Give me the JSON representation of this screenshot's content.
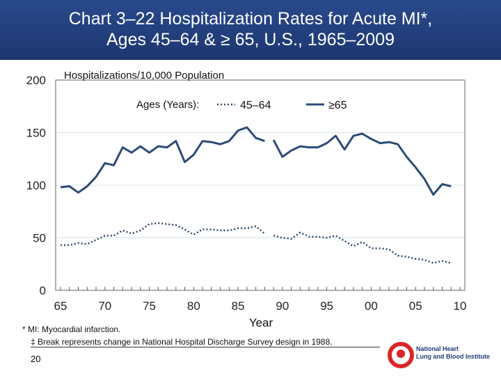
{
  "title": {
    "line1": "Chart 3–22 Hospitalization Rates for Acute MI*,",
    "line2": "Ages 45–64 & ≥ 65, U.S., 1965–2009"
  },
  "footnotes": [
    "* MI: Myocardial infarction.",
    "‡ Break represents change in National Hospital Discharge Survey design in 1988."
  ],
  "slide_number": "20",
  "logo_text": "National Heart Lung and Blood Institute",
  "chart_data": {
    "type": "line",
    "ylabel": "Hospitalizations/10,000 Population",
    "xlabel": "Year",
    "ylim": [
      0,
      200
    ],
    "yticks": [
      "0",
      "50",
      "100",
      "150",
      "200"
    ],
    "xlim": [
      1965,
      2010
    ],
    "xtick_labels": [
      "65",
      "70",
      "75",
      "80",
      "85",
      "90",
      "95",
      "00",
      "05",
      "10"
    ],
    "grid": true,
    "legend": {
      "title": "Ages (Years):",
      "placement": "top-center"
    },
    "break_year": 1988,
    "series": [
      {
        "name": "45–64",
        "style": "dotted",
        "color": "#2b4566",
        "segments": [
          {
            "x": [
              1965,
              1966,
              1967,
              1968,
              1969,
              1970,
              1971,
              1972,
              1973,
              1974,
              1975,
              1976,
              1977,
              1978,
              1979,
              1980,
              1981,
              1982,
              1983,
              1984,
              1985,
              1986,
              1987,
              1988
            ],
            "y": [
              43,
              43,
              45,
              44,
              48,
              52,
              52,
              57,
              54,
              57,
              63,
              64,
              63,
              62,
              58,
              53,
              58,
              58,
              57,
              57,
              59,
              59,
              61,
              54
            ]
          },
          {
            "x": [
              1989,
              1990,
              1991,
              1992,
              1993,
              1994,
              1995,
              1996,
              1997,
              1998,
              1999,
              2000,
              2001,
              2002,
              2003,
              2004,
              2005,
              2006,
              2007,
              2008,
              2009
            ],
            "y": [
              52,
              50,
              49,
              55,
              51,
              51,
              50,
              52,
              47,
              42,
              46,
              40,
              40,
              39,
              33,
              32,
              30,
              29,
              26,
              28,
              26
            ]
          }
        ]
      },
      {
        "name": "≥65",
        "style": "solid",
        "color": "#2b4a78",
        "segments": [
          {
            "x": [
              1965,
              1966,
              1967,
              1968,
              1969,
              1970,
              1971,
              1972,
              1973,
              1974,
              1975,
              1976,
              1977,
              1978,
              1979,
              1980,
              1981,
              1982,
              1983,
              1984,
              1985,
              1986,
              1987,
              1988
            ],
            "y": [
              98,
              99,
              93,
              99,
              108,
              121,
              119,
              136,
              131,
              137,
              131,
              137,
              136,
              142,
              122,
              129,
              142,
              141,
              139,
              142,
              152,
              155,
              145,
              142
            ]
          },
          {
            "x": [
              1989,
              1990,
              1991,
              1992,
              1993,
              1994,
              1995,
              1996,
              1997,
              1998,
              1999,
              2000,
              2001,
              2002,
              2003,
              2004,
              2005,
              2006,
              2007,
              2008,
              2009
            ],
            "y": [
              143,
              127,
              133,
              137,
              136,
              136,
              140,
              147,
              134,
              147,
              149,
              144,
              140,
              141,
              139,
              127,
              117,
              106,
              91,
              101,
              99
            ]
          }
        ]
      }
    ]
  }
}
